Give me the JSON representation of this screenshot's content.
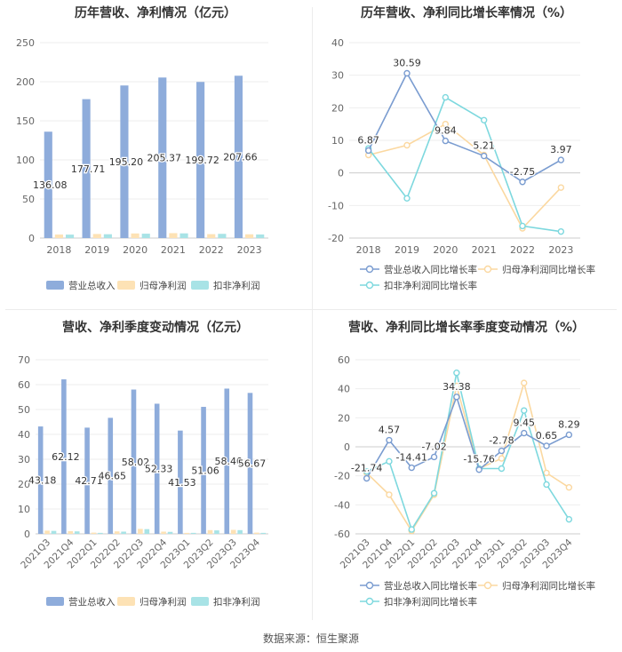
{
  "source": "数据来源：恒生聚源",
  "chart_data": [
    {
      "id": "annual_revenue",
      "type": "bar",
      "title": "历年营收、净利情况（亿元）",
      "categories": [
        "2018",
        "2019",
        "2020",
        "2021",
        "2022",
        "2023"
      ],
      "ylim": [
        0,
        250
      ],
      "yticks": [
        0,
        50,
        100,
        150,
        200,
        250
      ],
      "legend_position": "bottom",
      "series": [
        {
          "name": "营业总收入",
          "color": "#8eacdb",
          "labels": true,
          "values": [
            136.08,
            177.71,
            195.2,
            205.37,
            199.72,
            207.66
          ],
          "value_labels": [
            "136.08",
            "177.71",
            "195.20",
            "205.37",
            "199.72",
            "207.66"
          ]
        },
        {
          "name": "归母净利润",
          "color": "#fde2b5",
          "values": [
            4.5,
            5.2,
            5.9,
            6.3,
            5.0,
            4.8
          ]
        },
        {
          "name": "扣非净利润",
          "color": "#a8e3e6",
          "values": [
            4.4,
            4.9,
            5.6,
            6.0,
            5.4,
            4.6
          ]
        }
      ]
    },
    {
      "id": "annual_growth",
      "type": "line",
      "title": "历年营收、净利同比增长率情况（%）",
      "categories": [
        "2018",
        "2019",
        "2020",
        "2021",
        "2022",
        "2023"
      ],
      "ylim": [
        -20,
        40
      ],
      "yticks": [
        -20,
        -10,
        0,
        10,
        20,
        30,
        40
      ],
      "legend_position": "bottom",
      "series": [
        {
          "name": "营业总收入同比增长率",
          "color": "#7a9cd0",
          "labels": true,
          "values": [
            6.87,
            30.59,
            9.84,
            5.21,
            -2.75,
            3.97
          ],
          "value_labels": [
            "6.87",
            "30.59",
            "9.84",
            "5.21",
            "-2.75",
            "3.97"
          ]
        },
        {
          "name": "归母净利润同比增长率",
          "color": "#fbd8a0",
          "values": [
            5.5,
            8.5,
            15.0,
            5.5,
            -17.0,
            -4.5
          ]
        },
        {
          "name": "扣非净利润同比增长率",
          "color": "#7dd8de",
          "values": [
            7.5,
            -7.8,
            23.2,
            16.2,
            -16.3,
            -18.0
          ]
        }
      ]
    },
    {
      "id": "quarterly_revenue",
      "type": "bar",
      "title": "营收、净利季度变动情况（亿元）",
      "categories": [
        "2021Q3",
        "2021Q4",
        "2022Q1",
        "2022Q2",
        "2022Q3",
        "2022Q4",
        "2023Q1",
        "2023Q2",
        "2023Q3",
        "2023Q4"
      ],
      "ylim": [
        0,
        70
      ],
      "yticks": [
        0,
        10,
        20,
        30,
        40,
        50,
        60,
        70
      ],
      "legend_position": "bottom",
      "series": [
        {
          "name": "营业总收入",
          "color": "#8eacdb",
          "labels": true,
          "values": [
            43.18,
            62.12,
            42.71,
            46.65,
            58.02,
            52.33,
            41.53,
            51.06,
            58.4,
            56.67
          ],
          "value_labels": [
            "43.18",
            "62.12",
            "42.71",
            "46.65",
            "58.02",
            "52.33",
            "41.53",
            "51.06",
            "58.40",
            "56.67"
          ]
        },
        {
          "name": "归母净利润",
          "color": "#fde2b5",
          "values": [
            1.3,
            1.1,
            0.5,
            1.0,
            2.0,
            0.9,
            0.4,
            1.5,
            1.6,
            0.5
          ]
        },
        {
          "name": "扣非净利润",
          "color": "#a8e3e6",
          "values": [
            1.2,
            1.0,
            0.4,
            0.9,
            1.9,
            0.8,
            0.4,
            1.4,
            1.5,
            0.4
          ]
        }
      ]
    },
    {
      "id": "quarterly_growth",
      "type": "line",
      "title": "营收、净利同比增长率季度变动情况（%）",
      "categories": [
        "2021Q3",
        "2021Q4",
        "2022Q1",
        "2022Q2",
        "2022Q3",
        "2022Q4",
        "2023Q1",
        "2023Q2",
        "2023Q3",
        "2023Q4"
      ],
      "ylim": [
        -60,
        60
      ],
      "yticks": [
        -60,
        -40,
        -20,
        0,
        20,
        40,
        60
      ],
      "legend_position": "bottom",
      "series": [
        {
          "name": "营业总收入同比增长率",
          "color": "#7a9cd0",
          "labels": true,
          "values": [
            -21.74,
            4.57,
            -14.41,
            -7.02,
            34.38,
            -15.76,
            -2.78,
            9.45,
            0.65,
            8.29
          ],
          "value_labels": [
            "-21.74",
            "4.57",
            "-14.41",
            "-7.02",
            "34.38",
            "-15.76",
            "-2.78",
            "9.45",
            "0.65",
            "8.29"
          ]
        },
        {
          "name": "归母净利润同比增长率",
          "color": "#fbd8a0",
          "values": [
            -18.0,
            -33.0,
            -58.0,
            -33.0,
            42.0,
            -15.0,
            -8.0,
            44.0,
            -18.0,
            -28.0
          ]
        },
        {
          "name": "扣非净利润同比增长率",
          "color": "#7dd8de",
          "values": [
            -17.0,
            -10.0,
            -57.0,
            -32.0,
            51.0,
            -15.0,
            -15.0,
            25.0,
            -26.0,
            -50.0
          ]
        }
      ]
    }
  ]
}
